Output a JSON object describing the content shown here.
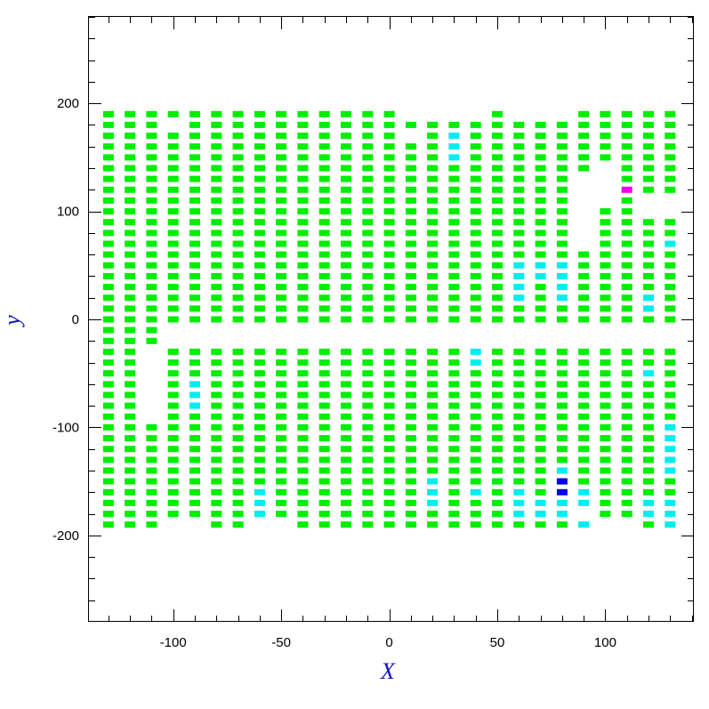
{
  "chart_data": {
    "type": "heatmap",
    "title": "",
    "xlabel": "X",
    "ylabel": "y",
    "xlim": [
      -139,
      141
    ],
    "ylim": [
      -280,
      280
    ],
    "x_ticks": [
      -100,
      -50,
      0,
      50,
      100
    ],
    "y_ticks": [
      -200,
      -100,
      0,
      100,
      200
    ],
    "x_tick_labels": [
      "-100",
      "-50",
      "0",
      "50",
      "100"
    ],
    "y_tick_labels": [
      "-200",
      "-100",
      "0",
      "100",
      "200"
    ],
    "grid": false,
    "cell_size": [
      6,
      7
    ],
    "x_columns": [
      -130,
      -120,
      -110,
      -100,
      -90,
      -80,
      -70,
      -60,
      -50,
      -40,
      -30,
      -20,
      -10,
      0,
      10,
      20,
      30,
      40,
      50,
      60,
      70,
      80,
      90,
      100,
      110,
      120,
      130
    ],
    "colors": {
      "green": "#00ee00",
      "cyan": "#00eeee",
      "blue": "#0000ee",
      "magenta": "#ee00ee"
    },
    "green_columns": [
      {
        "x": -130,
        "ymax": 190,
        "ymin": -190,
        "missing": []
      },
      {
        "x": -120,
        "ymax": 190,
        "ymin": -190,
        "missing": []
      },
      {
        "x": -110,
        "ymax": 190,
        "ymin": -190,
        "missing": [
          -30,
          -40,
          -50,
          -60,
          -70,
          -80,
          -90
        ]
      },
      {
        "x": -100,
        "ymax": 190,
        "ymin": -180,
        "missing": [
          180,
          -10,
          -20
        ]
      },
      {
        "x": -90,
        "ymax": 190,
        "ymin": -180,
        "missing": [
          -10,
          -20
        ]
      },
      {
        "x": -80,
        "ymax": 190,
        "ymin": -190,
        "missing": [
          -10,
          -20
        ]
      },
      {
        "x": -70,
        "ymax": 190,
        "ymin": -190,
        "missing": [
          -10,
          -20
        ]
      },
      {
        "x": -60,
        "ymax": 190,
        "ymin": -180,
        "missing": [
          -10,
          -20
        ]
      },
      {
        "x": -50,
        "ymax": 190,
        "ymin": -180,
        "missing": [
          -10,
          -20
        ]
      },
      {
        "x": -40,
        "ymax": 190,
        "ymin": -190,
        "missing": [
          -10,
          -20
        ]
      },
      {
        "x": -30,
        "ymax": 190,
        "ymin": -190,
        "missing": [
          -10,
          -20
        ]
      },
      {
        "x": -20,
        "ymax": 190,
        "ymin": -190,
        "missing": [
          -10,
          -20
        ]
      },
      {
        "x": -10,
        "ymax": 190,
        "ymin": -190,
        "missing": [
          -10,
          -20
        ]
      },
      {
        "x": 0,
        "ymax": 190,
        "ymin": -190,
        "missing": [
          -10,
          -20
        ]
      },
      {
        "x": 10,
        "ymax": 180,
        "ymin": -190,
        "missing": [
          170,
          -10,
          -20
        ]
      },
      {
        "x": 20,
        "ymax": 180,
        "ymin": -190,
        "missing": [
          -10,
          -20
        ]
      },
      {
        "x": 30,
        "ymax": 180,
        "ymin": -190,
        "missing": [
          -10,
          -20
        ]
      },
      {
        "x": 40,
        "ymax": 180,
        "ymin": -190,
        "missing": [
          -10,
          -20
        ]
      },
      {
        "x": 50,
        "ymax": 190,
        "ymin": -190,
        "missing": [
          -10,
          -20
        ]
      },
      {
        "x": 60,
        "ymax": 180,
        "ymin": -190,
        "missing": [
          -10,
          -20
        ]
      },
      {
        "x": 70,
        "ymax": 180,
        "ymin": -190,
        "missing": [
          -10,
          -20
        ]
      },
      {
        "x": 80,
        "ymax": 180,
        "ymin": -190,
        "missing": [
          -10,
          -20
        ]
      },
      {
        "x": 90,
        "ymax": 190,
        "ymin": -190,
        "missing": [
          130,
          120,
          110,
          100,
          90,
          80,
          70,
          -10,
          -20,
          -180
        ]
      },
      {
        "x": 100,
        "ymax": 190,
        "ymin": -180,
        "missing": [
          140,
          130,
          120,
          110,
          -10,
          -20
        ]
      },
      {
        "x": 110,
        "ymax": 190,
        "ymin": -180,
        "missing": [
          -10,
          -20
        ]
      },
      {
        "x": 120,
        "ymax": 190,
        "ymin": -190,
        "missing": [
          110,
          100,
          -10,
          -20
        ]
      },
      {
        "x": 130,
        "ymax": 190,
        "ymin": -190,
        "missing": [
          110,
          100,
          -10,
          -20
        ]
      }
    ],
    "cyan_points": [
      [
        30,
        170
      ],
      [
        30,
        160
      ],
      [
        30,
        150
      ],
      [
        60,
        50
      ],
      [
        60,
        40
      ],
      [
        60,
        30
      ],
      [
        60,
        20
      ],
      [
        70,
        50
      ],
      [
        70,
        40
      ],
      [
        80,
        50
      ],
      [
        80,
        40
      ],
      [
        80,
        30
      ],
      [
        80,
        20
      ],
      [
        120,
        20
      ],
      [
        120,
        10
      ],
      [
        130,
        70
      ],
      [
        40,
        -30
      ],
      [
        40,
        -40
      ],
      [
        120,
        -50
      ],
      [
        -90,
        -60
      ],
      [
        -90,
        -70
      ],
      [
        -90,
        -80
      ],
      [
        130,
        -100
      ],
      [
        130,
        -110
      ],
      [
        130,
        -120
      ],
      [
        130,
        -130
      ],
      [
        130,
        -140
      ],
      [
        80,
        -140
      ],
      [
        20,
        -150
      ],
      [
        -60,
        -160
      ],
      [
        20,
        -160
      ],
      [
        40,
        -160
      ],
      [
        60,
        -160
      ],
      [
        90,
        -160
      ],
      [
        -60,
        -170
      ],
      [
        20,
        -170
      ],
      [
        60,
        -170
      ],
      [
        70,
        -170
      ],
      [
        80,
        -170
      ],
      [
        90,
        -170
      ],
      [
        120,
        -170
      ],
      [
        130,
        -170
      ],
      [
        -60,
        -180
      ],
      [
        60,
        -180
      ],
      [
        70,
        -180
      ],
      [
        80,
        -180
      ],
      [
        120,
        -180
      ],
      [
        130,
        -180
      ],
      [
        90,
        -190
      ],
      [
        130,
        -190
      ]
    ],
    "blue_points": [
      [
        80,
        -150
      ],
      [
        80,
        -160
      ]
    ],
    "magenta_points": [
      [
        110,
        120
      ]
    ]
  }
}
